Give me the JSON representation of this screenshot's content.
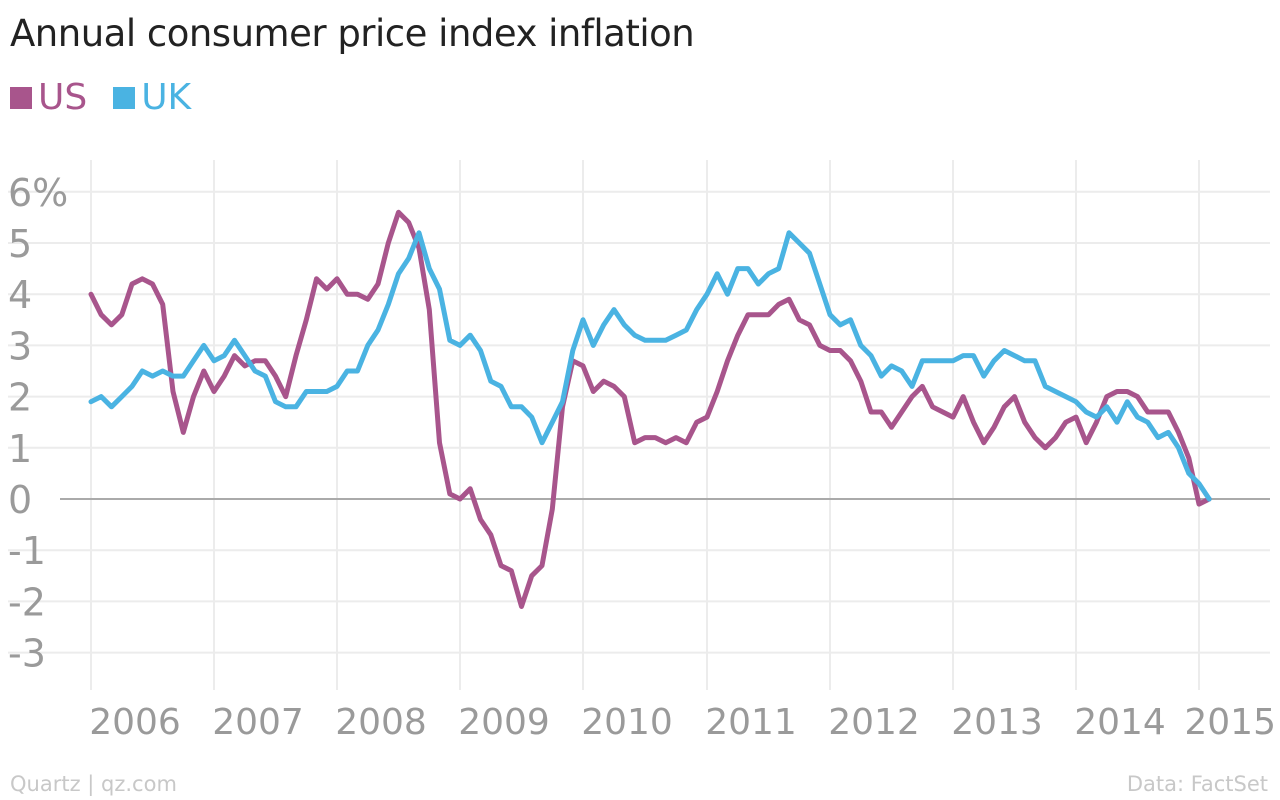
{
  "chart_data": {
    "type": "line",
    "title": "Annual consumer price index inflation",
    "ylim": [
      -3.7,
      6.6
    ],
    "yticks": [
      -3,
      -2,
      -1,
      0,
      1,
      2,
      3,
      4,
      5,
      6
    ],
    "ytick_labels": [
      "-3",
      "-2",
      "-1",
      "0",
      "1",
      "2",
      "3",
      "4",
      "5",
      "6%"
    ],
    "xticks": [
      2006,
      2007,
      2008,
      2009,
      2010,
      2011,
      2012,
      2013,
      2014,
      2015
    ],
    "xtick_labels": [
      "2006",
      "2007",
      "2008",
      "2009",
      "2010",
      "2011",
      "2012",
      "2013",
      "2014",
      "2015"
    ],
    "xlim": [
      2005.75,
      2015.4
    ],
    "grid": true,
    "legend_position": "top-left",
    "start": "2006-01",
    "series": [
      {
        "name": "US",
        "color": "#a8558c",
        "values": [
          4.0,
          3.6,
          3.4,
          3.6,
          4.2,
          4.3,
          4.2,
          3.8,
          2.1,
          1.3,
          2.0,
          2.5,
          2.1,
          2.4,
          2.8,
          2.6,
          2.7,
          2.7,
          2.4,
          2.0,
          2.8,
          3.5,
          4.3,
          4.1,
          4.3,
          4.0,
          4.0,
          3.9,
          4.2,
          5.0,
          5.6,
          5.4,
          4.9,
          3.7,
          1.1,
          0.1,
          0.0,
          0.2,
          -0.4,
          -0.7,
          -1.3,
          -1.4,
          -2.1,
          -1.5,
          -1.3,
          -0.2,
          1.8,
          2.7,
          2.6,
          2.1,
          2.3,
          2.2,
          2.0,
          1.1,
          1.2,
          1.2,
          1.1,
          1.2,
          1.1,
          1.5,
          1.6,
          2.1,
          2.7,
          3.2,
          3.6,
          3.6,
          3.6,
          3.8,
          3.9,
          3.5,
          3.4,
          3.0,
          2.9,
          2.9,
          2.7,
          2.3,
          1.7,
          1.7,
          1.4,
          1.7,
          2.0,
          2.2,
          1.8,
          1.7,
          1.6,
          2.0,
          1.5,
          1.1,
          1.4,
          1.8,
          2.0,
          1.5,
          1.2,
          1.0,
          1.2,
          1.5,
          1.6,
          1.1,
          1.5,
          2.0,
          2.1,
          2.1,
          2.0,
          1.7,
          1.7,
          1.7,
          1.3,
          0.8,
          -0.1,
          0.0
        ],
        "labels": [
          "Jan-06",
          "Feb-06",
          "Mar-06",
          "Apr-06",
          "May-06",
          "Jun-06",
          "Jul-06",
          "Aug-06",
          "Sep-06",
          "Oct-06",
          "Nov-06",
          "Dec-06",
          "Jan-07",
          "Feb-07",
          "Mar-07",
          "Apr-07",
          "May-07",
          "Jun-07",
          "Jul-07",
          "Aug-07",
          "Sep-07",
          "Oct-07",
          "Nov-07",
          "Dec-07",
          "Jan-08",
          "Feb-08",
          "Mar-08",
          "Apr-08",
          "May-08",
          "Jun-08",
          "Jul-08",
          "Aug-08",
          "Sep-08",
          "Oct-08",
          "Nov-08",
          "Dec-08",
          "Jan-09",
          "Feb-09",
          "Mar-09",
          "Apr-09",
          "May-09",
          "Jun-09",
          "Jul-09",
          "Aug-09",
          "Sep-09",
          "Oct-09",
          "Nov-09",
          "Dec-09",
          "Jan-10",
          "Feb-10",
          "Mar-10",
          "Apr-10",
          "May-10",
          "Jun-10",
          "Jul-10",
          "Aug-10",
          "Sep-10",
          "Oct-10",
          "Nov-10",
          "Dec-10",
          "Jan-11",
          "Feb-11",
          "Mar-11",
          "Apr-11",
          "May-11",
          "Jun-11",
          "Jul-11",
          "Aug-11",
          "Sep-11",
          "Oct-11",
          "Nov-11",
          "Dec-11",
          "Jan-12",
          "Feb-12",
          "Mar-12",
          "Apr-12",
          "May-12",
          "Jun-12",
          "Jul-12",
          "Aug-12",
          "Sep-12",
          "Oct-12",
          "Nov-12",
          "Dec-12",
          "Jan-13",
          "Feb-13",
          "Mar-13",
          "Apr-13",
          "May-13",
          "Jun-13",
          "Jul-13",
          "Aug-13",
          "Sep-13",
          "Oct-13",
          "Nov-13",
          "Dec-13",
          "Jan-14",
          "Feb-14",
          "Mar-14",
          "Apr-14",
          "May-14",
          "Jun-14",
          "Jul-14",
          "Aug-14",
          "Sep-14",
          "Oct-14",
          "Nov-14",
          "Dec-14",
          "Jan-15",
          "Feb-15"
        ]
      },
      {
        "name": "UK",
        "color": "#4ab3e2",
        "values": [
          1.9,
          2.0,
          1.8,
          2.0,
          2.2,
          2.5,
          2.4,
          2.5,
          2.4,
          2.4,
          2.7,
          3.0,
          2.7,
          2.8,
          3.1,
          2.8,
          2.5,
          2.4,
          1.9,
          1.8,
          1.8,
          2.1,
          2.1,
          2.1,
          2.2,
          2.5,
          2.5,
          3.0,
          3.3,
          3.8,
          4.4,
          4.7,
          5.2,
          4.5,
          4.1,
          3.1,
          3.0,
          3.2,
          2.9,
          2.3,
          2.2,
          1.8,
          1.8,
          1.6,
          1.1,
          1.5,
          1.9,
          2.9,
          3.5,
          3.0,
          3.4,
          3.7,
          3.4,
          3.2,
          3.1,
          3.1,
          3.1,
          3.2,
          3.3,
          3.7,
          4.0,
          4.4,
          4.0,
          4.5,
          4.5,
          4.2,
          4.4,
          4.5,
          5.2,
          5.0,
          4.8,
          4.2,
          3.6,
          3.4,
          3.5,
          3.0,
          2.8,
          2.4,
          2.6,
          2.5,
          2.2,
          2.7,
          2.7,
          2.7,
          2.7,
          2.8,
          2.8,
          2.4,
          2.7,
          2.9,
          2.8,
          2.7,
          2.7,
          2.2,
          2.1,
          2.0,
          1.9,
          1.7,
          1.6,
          1.8,
          1.5,
          1.9,
          1.6,
          1.5,
          1.2,
          1.3,
          1.0,
          0.5,
          0.3,
          0.0
        ],
        "labels": [
          "Jan-06",
          "Feb-06",
          "Mar-06",
          "Apr-06",
          "May-06",
          "Jun-06",
          "Jul-06",
          "Aug-06",
          "Sep-06",
          "Oct-06",
          "Nov-06",
          "Dec-06",
          "Jan-07",
          "Feb-07",
          "Mar-07",
          "Apr-07",
          "May-07",
          "Jun-07",
          "Jul-07",
          "Aug-07",
          "Sep-07",
          "Oct-07",
          "Nov-07",
          "Dec-07",
          "Jan-08",
          "Feb-08",
          "Mar-08",
          "Apr-08",
          "May-08",
          "Jun-08",
          "Jul-08",
          "Aug-08",
          "Sep-08",
          "Oct-08",
          "Nov-08",
          "Dec-08",
          "Jan-09",
          "Feb-09",
          "Mar-09",
          "Apr-09",
          "May-09",
          "Jun-09",
          "Jul-09",
          "Aug-09",
          "Sep-09",
          "Oct-09",
          "Nov-09",
          "Dec-09",
          "Jan-10",
          "Feb-10",
          "Mar-10",
          "Apr-10",
          "May-10",
          "Jun-10",
          "Jul-10",
          "Aug-10",
          "Sep-10",
          "Oct-10",
          "Nov-10",
          "Dec-10",
          "Jan-11",
          "Feb-11",
          "Mar-11",
          "Apr-11",
          "May-11",
          "Jun-11",
          "Jul-11",
          "Aug-11",
          "Sep-11",
          "Oct-11",
          "Nov-11",
          "Dec-11",
          "Jan-12",
          "Feb-12",
          "Mar-12",
          "Apr-12",
          "May-12",
          "Jun-12",
          "Jul-12",
          "Aug-12",
          "Sep-12",
          "Oct-12",
          "Nov-12",
          "Dec-12",
          "Jan-13",
          "Feb-13",
          "Mar-13",
          "Apr-13",
          "May-13",
          "Jun-13",
          "Jul-13",
          "Aug-13",
          "Sep-13",
          "Oct-13",
          "Nov-13",
          "Dec-13",
          "Jan-14",
          "Feb-14",
          "Mar-14",
          "Apr-14",
          "May-14",
          "Jun-14",
          "Jul-14",
          "Aug-14",
          "Sep-14",
          "Oct-14",
          "Nov-14",
          "Dec-14",
          "Jan-15",
          "Feb-15"
        ]
      }
    ]
  },
  "footer": {
    "source_left": "Quartz | qz.com",
    "source_right": "Data: FactSet"
  },
  "colors": {
    "grid": "#ececec",
    "zero_line": "#aaaaaa",
    "tick_text": "#9a9a9a",
    "title_text": "#222222"
  }
}
